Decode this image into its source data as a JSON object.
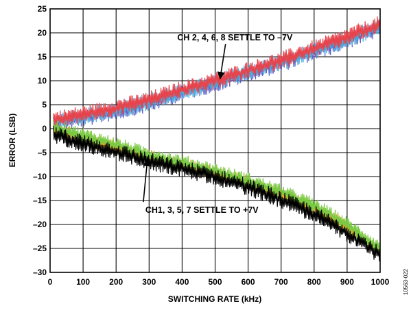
{
  "chart_data": {
    "type": "line",
    "xlabel": "SWITCHING RATE (kHz)",
    "ylabel": "ERROR (LSB)",
    "xlim": [
      0,
      1000
    ],
    "ylim": [
      -30,
      25
    ],
    "x_ticks": [
      "0",
      "100",
      "200",
      "300",
      "400",
      "500",
      "600",
      "700",
      "800",
      "900",
      "1000"
    ],
    "y_ticks": [
      "25",
      "20",
      "15",
      "10",
      "5",
      "0",
      "–5",
      "–10",
      "–15",
      "–20",
      "–25",
      "–30"
    ],
    "grid": true,
    "legend": "none",
    "series": [
      {
        "color": "#5a5fc4",
        "noise": 0.9,
        "x": [
          0,
          100,
          200,
          300,
          400,
          500,
          600,
          700,
          800,
          900,
          1000
        ],
        "y": [
          1.0,
          2.2,
          3.6,
          5.2,
          7.6,
          9.4,
          11.6,
          13.6,
          16.0,
          18.4,
          21.0
        ]
      },
      {
        "color": "#4aaee0",
        "noise": 0.9,
        "x": [
          0,
          100,
          200,
          300,
          400,
          500,
          600,
          700,
          800,
          900,
          1000
        ],
        "y": [
          1.3,
          2.5,
          4.0,
          5.6,
          7.8,
          9.6,
          11.8,
          13.9,
          16.2,
          18.7,
          21.3
        ]
      },
      {
        "color": "#e8424a",
        "noise": 0.9,
        "x": [
          0,
          100,
          200,
          300,
          400,
          500,
          600,
          700,
          800,
          900,
          1000
        ],
        "y": [
          1.8,
          3.0,
          4.4,
          6.0,
          8.2,
          10.0,
          12.2,
          14.3,
          16.7,
          19.2,
          21.8
        ]
      },
      {
        "color": "#e8a020",
        "noise": 0.8,
        "x": [
          0,
          100,
          200,
          300,
          400,
          500,
          600,
          700,
          800,
          900,
          1000
        ],
        "y": [
          0.0,
          -2.0,
          -4.0,
          -6.0,
          -7.6,
          -9.4,
          -11.4,
          -13.8,
          -16.6,
          -20.6,
          -25.6
        ]
      },
      {
        "color": "#7ac943",
        "noise": 0.8,
        "x": [
          0,
          100,
          200,
          300,
          400,
          500,
          600,
          700,
          800,
          900,
          1000
        ],
        "y": [
          0.6,
          -1.4,
          -3.4,
          -5.4,
          -7.0,
          -8.8,
          -10.8,
          -13.2,
          -16.0,
          -20.0,
          -25.0
        ]
      },
      {
        "color": "#000000",
        "noise": 0.9,
        "x": [
          0,
          100,
          200,
          300,
          400,
          500,
          600,
          700,
          800,
          900,
          1000
        ],
        "y": [
          -1.0,
          -3.0,
          -4.8,
          -6.8,
          -8.4,
          -10.0,
          -12.2,
          -14.8,
          -17.8,
          -21.8,
          -26.4
        ]
      }
    ],
    "annotations": [
      {
        "text": "CH 2, 4, 6, 8 SETTLE TO –7V",
        "x": 560,
        "y": 18.4,
        "arrow_x": 515,
        "arrow_y": 10.4
      },
      {
        "text": "CH1, 3, 5, 7 SETTLE TO +7V",
        "x": 460,
        "y": -17.6,
        "arrow_x": 295,
        "arrow_y": -6.4
      }
    ]
  },
  "figure_id": "10563-022"
}
